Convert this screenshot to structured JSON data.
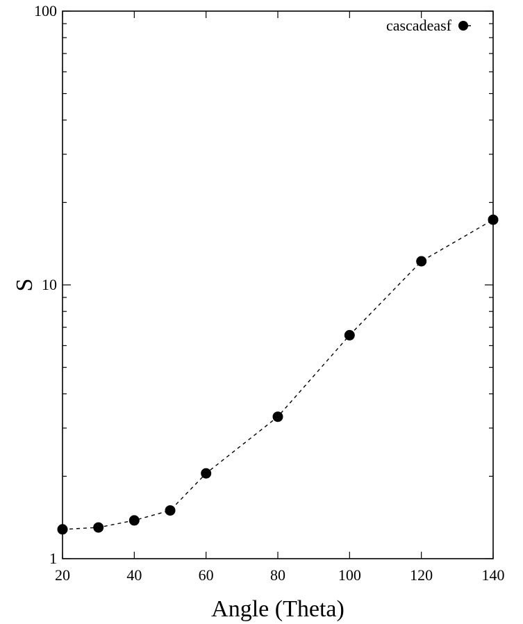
{
  "chart_data": {
    "type": "scatter",
    "title": "",
    "xlabel": "Angle (Theta)",
    "ylabel": "S",
    "xlim": [
      20,
      140
    ],
    "ylim": [
      1,
      100
    ],
    "yscale": "log",
    "grid": false,
    "legend": "top-right",
    "x_ticks": [
      "20",
      "40",
      "60",
      "80",
      "100",
      "120",
      "140"
    ],
    "y_ticks": [
      "1",
      "10",
      "100"
    ],
    "series": [
      {
        "name": "cascadeasf",
        "line_style": "dashed",
        "marker": "filled-circle",
        "color": "#000000",
        "x": [
          20,
          30,
          40,
          50,
          60,
          80,
          100,
          120,
          140
        ],
        "y": [
          1.28,
          1.3,
          1.38,
          1.5,
          2.05,
          3.3,
          6.55,
          12.2,
          17.3
        ]
      }
    ]
  }
}
